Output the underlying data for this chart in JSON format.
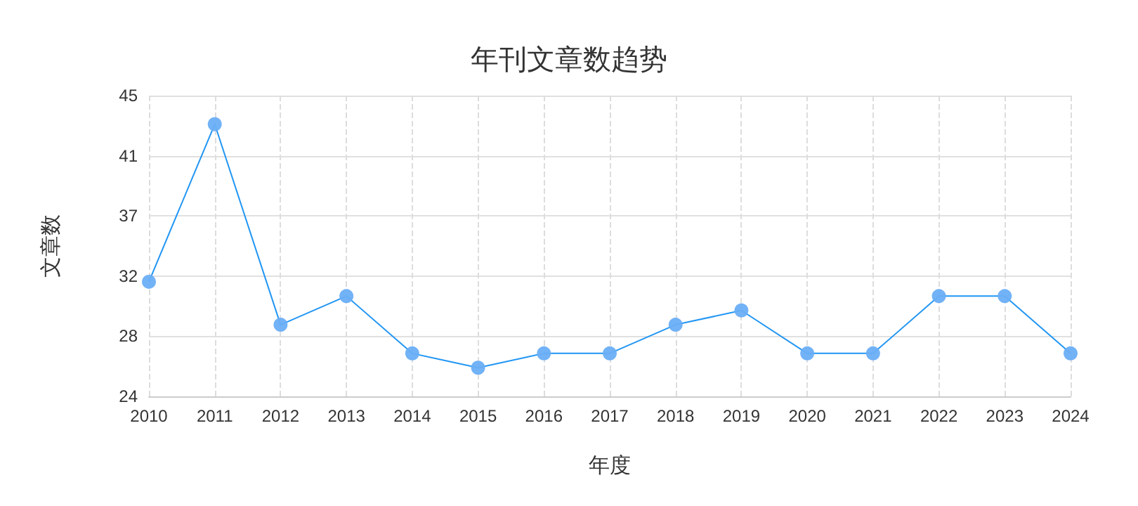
{
  "chart_data": {
    "type": "line",
    "title": "年刊文章数趋势",
    "xlabel": "年度",
    "ylabel": "文章数",
    "categories": [
      "2010",
      "2011",
      "2012",
      "2013",
      "2014",
      "2015",
      "2016",
      "2017",
      "2018",
      "2019",
      "2020",
      "2021",
      "2022",
      "2023",
      "2024"
    ],
    "series": [
      {
        "color": "#2196f3",
        "values": [
          32,
          43,
          29,
          31,
          27,
          26,
          27,
          27,
          29,
          30,
          27,
          27,
          31,
          31,
          27
        ]
      }
    ],
    "ylim": [
      24,
      45
    ],
    "yticks": [
      24,
      {
        "value": 28.2,
        "label": "28"
      },
      {
        "value": 32.4,
        "label": "32"
      },
      {
        "value": 36.6,
        "label": "37"
      },
      {
        "value": 40.8,
        "label": "41"
      },
      45
    ],
    "grid": true,
    "marker": "circle",
    "line_style": "solid"
  }
}
